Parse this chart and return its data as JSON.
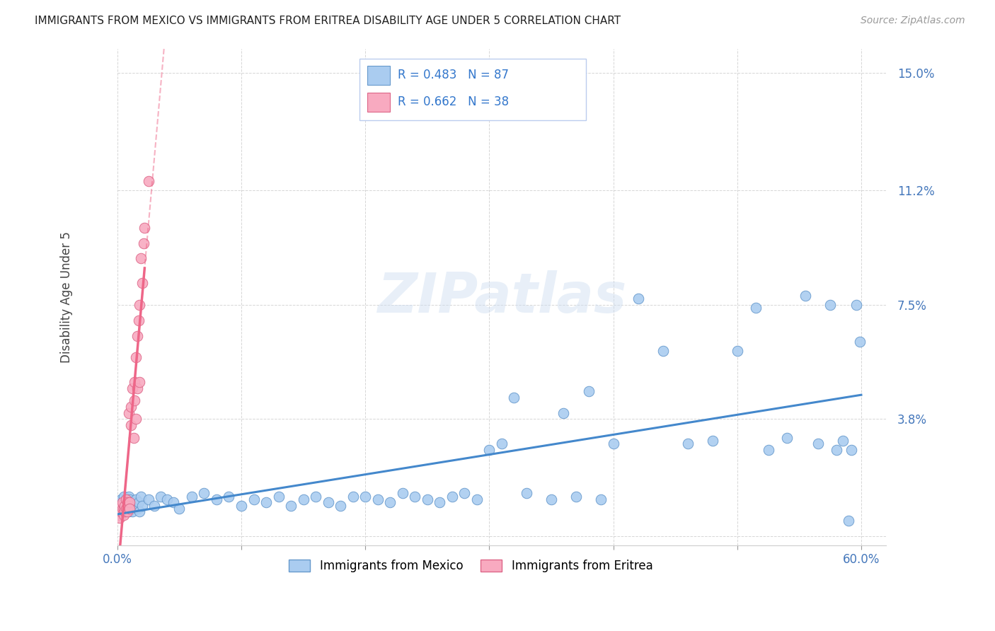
{
  "title": "IMMIGRANTS FROM MEXICO VS IMMIGRANTS FROM ERITREA DISABILITY AGE UNDER 5 CORRELATION CHART",
  "source": "Source: ZipAtlas.com",
  "ylabel": "Disability Age Under 5",
  "xlim": [
    0.0,
    0.62
  ],
  "ylim": [
    -0.003,
    0.158
  ],
  "xticks": [
    0.0,
    0.1,
    0.2,
    0.3,
    0.4,
    0.5,
    0.6
  ],
  "xticklabels_edge": [
    "0.0%",
    "",
    "",
    "",
    "",
    "",
    "60.0%"
  ],
  "yticks": [
    0.0,
    0.038,
    0.075,
    0.112,
    0.15
  ],
  "yticklabels": [
    "",
    "3.8%",
    "7.5%",
    "11.2%",
    "15.0%"
  ],
  "mexico_color": "#aaccf0",
  "eritrea_color": "#f8aac0",
  "mexico_edge": "#6699cc",
  "eritrea_edge": "#dd6688",
  "trendline_mexico_color": "#4488cc",
  "trendline_eritrea_color": "#ee6688",
  "mexico_R": 0.483,
  "mexico_N": 87,
  "eritrea_R": 0.662,
  "eritrea_N": 38,
  "watermark": "ZIPatlas",
  "mexico_x": [
    0.001,
    0.002,
    0.002,
    0.003,
    0.003,
    0.004,
    0.004,
    0.005,
    0.005,
    0.006,
    0.006,
    0.007,
    0.007,
    0.008,
    0.008,
    0.009,
    0.009,
    0.01,
    0.01,
    0.011,
    0.011,
    0.012,
    0.013,
    0.014,
    0.015,
    0.016,
    0.017,
    0.018,
    0.019,
    0.02,
    0.025,
    0.03,
    0.035,
    0.04,
    0.045,
    0.05,
    0.06,
    0.07,
    0.08,
    0.09,
    0.1,
    0.11,
    0.12,
    0.13,
    0.14,
    0.15,
    0.16,
    0.17,
    0.18,
    0.19,
    0.2,
    0.21,
    0.22,
    0.23,
    0.24,
    0.25,
    0.26,
    0.27,
    0.28,
    0.29,
    0.3,
    0.31,
    0.32,
    0.33,
    0.35,
    0.36,
    0.37,
    0.38,
    0.39,
    0.4,
    0.42,
    0.44,
    0.46,
    0.48,
    0.5,
    0.515,
    0.525,
    0.54,
    0.555,
    0.565,
    0.575,
    0.58,
    0.585,
    0.59,
    0.592,
    0.596,
    0.599
  ],
  "mexico_y": [
    0.009,
    0.011,
    0.007,
    0.01,
    0.012,
    0.008,
    0.011,
    0.009,
    0.013,
    0.008,
    0.011,
    0.01,
    0.012,
    0.009,
    0.011,
    0.008,
    0.013,
    0.01,
    0.012,
    0.009,
    0.011,
    0.008,
    0.011,
    0.01,
    0.012,
    0.009,
    0.011,
    0.008,
    0.013,
    0.01,
    0.012,
    0.01,
    0.013,
    0.012,
    0.011,
    0.009,
    0.013,
    0.014,
    0.012,
    0.013,
    0.01,
    0.012,
    0.011,
    0.013,
    0.01,
    0.012,
    0.013,
    0.011,
    0.01,
    0.013,
    0.013,
    0.012,
    0.011,
    0.014,
    0.013,
    0.012,
    0.011,
    0.013,
    0.014,
    0.012,
    0.028,
    0.03,
    0.045,
    0.014,
    0.012,
    0.04,
    0.013,
    0.047,
    0.012,
    0.03,
    0.077,
    0.06,
    0.03,
    0.031,
    0.06,
    0.074,
    0.028,
    0.032,
    0.078,
    0.03,
    0.075,
    0.028,
    0.031,
    0.005,
    0.028,
    0.075,
    0.063
  ],
  "eritrea_x": [
    0.001,
    0.001,
    0.002,
    0.002,
    0.003,
    0.003,
    0.004,
    0.004,
    0.005,
    0.005,
    0.006,
    0.006,
    0.007,
    0.007,
    0.008,
    0.008,
    0.009,
    0.009,
    0.01,
    0.01,
    0.011,
    0.011,
    0.012,
    0.013,
    0.014,
    0.014,
    0.015,
    0.015,
    0.016,
    0.016,
    0.017,
    0.018,
    0.018,
    0.019,
    0.02,
    0.021,
    0.022,
    0.025
  ],
  "eritrea_y": [
    0.007,
    0.008,
    0.006,
    0.009,
    0.008,
    0.01,
    0.009,
    0.011,
    0.007,
    0.009,
    0.01,
    0.008,
    0.012,
    0.009,
    0.011,
    0.008,
    0.04,
    0.01,
    0.011,
    0.009,
    0.042,
    0.036,
    0.048,
    0.032,
    0.05,
    0.044,
    0.058,
    0.038,
    0.065,
    0.048,
    0.07,
    0.075,
    0.05,
    0.09,
    0.082,
    0.095,
    0.1,
    0.115
  ]
}
